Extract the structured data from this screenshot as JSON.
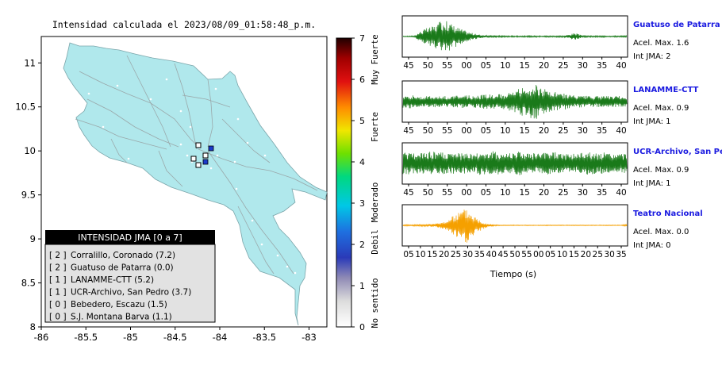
{
  "map": {
    "title": "Intensidad calculada el 2023/08/09_01:58:48_p.m.",
    "x_ticks": [
      "-86",
      "-85.5",
      "-85",
      "-84.5",
      "-84",
      "-83.5",
      "-83"
    ],
    "y_ticks": [
      "11",
      "10.5",
      "10",
      "9.5",
      "9",
      "8.5",
      "8"
    ],
    "xlim": [
      -86,
      -82.8
    ],
    "ylim": [
      8,
      11.3
    ],
    "land_color": "#b0e8ec",
    "legend": {
      "title": "INTENSIDAD JMA [0 a 7]",
      "items": [
        {
          "level": "[ 2 ]",
          "label": "Corralillo, Coronado (7.2)"
        },
        {
          "level": "[ 2 ]",
          "label": "Guatuso de Patarra (0.0)"
        },
        {
          "level": "[ 1 ]",
          "label": "LANAMME-CTT (5.2)"
        },
        {
          "level": "[ 1 ]",
          "label": "UCR-Archivo, San Pedro (3.7)"
        },
        {
          "level": "[ 0 ]",
          "label": "Bebedero, Escazu (1.5)"
        },
        {
          "level": "[ 0 ]",
          "label": "S.J. Montana Barva (1.1)"
        }
      ]
    }
  },
  "colorbar": {
    "ticks": [
      "7",
      "6",
      "5",
      "4",
      "3",
      "2",
      "1",
      "0"
    ],
    "labels": [
      "Muy Fuerte",
      "Fuerte",
      "Moderado",
      "Debil",
      "No sentido"
    ],
    "range": [
      0,
      7
    ]
  },
  "chart_data": {
    "type": "line",
    "panels": [
      {
        "name": "Guatuso de Patarra",
        "accel_text": "Acel. Max. 1.6",
        "int_text": "Int JMA: 2",
        "color": "#1a7a1a",
        "x_ticks": [
          "45",
          "50",
          "55",
          "00",
          "05",
          "10",
          "15",
          "20",
          "25",
          "30",
          "35",
          "40"
        ],
        "trace": [
          0.02,
          0.03,
          0.04,
          0.3,
          0.45,
          0.55,
          0.7,
          0.95,
          0.8,
          0.6,
          0.45,
          0.3,
          0.2,
          0.12,
          0.08,
          0.06,
          0.05,
          0.05,
          0.04,
          0.04,
          0.04,
          0.04,
          0.04,
          0.04,
          0.04,
          0.04,
          0.04,
          0.04,
          0.04,
          0.12,
          0.2,
          0.08,
          0.04,
          0.04,
          0.04,
          0.04,
          0.04,
          0.04,
          0.04,
          0.04
        ]
      },
      {
        "name": "LANAMME-CTT",
        "accel_text": "Acel. Max. 0.9",
        "int_text": "Int JMA: 1",
        "color": "#1a7a1a",
        "x_ticks": [
          "45",
          "50",
          "55",
          "00",
          "05",
          "10",
          "15",
          "20",
          "25",
          "30",
          "35",
          "40"
        ],
        "trace": [
          0.35,
          0.4,
          0.35,
          0.3,
          0.32,
          0.3,
          0.32,
          0.3,
          0.3,
          0.32,
          0.35,
          0.35,
          0.32,
          0.35,
          0.4,
          0.45,
          0.42,
          0.4,
          0.45,
          0.55,
          0.7,
          0.8,
          0.9,
          1.0,
          0.8,
          0.65,
          0.55,
          0.5,
          0.45,
          0.4,
          0.35,
          0.32,
          0.32,
          0.3,
          0.3,
          0.3,
          0.3,
          0.3,
          0.3,
          0.28
        ]
      },
      {
        "name": "UCR-Archivo, San Pedro",
        "accel_text": "Acel. Max. 0.9",
        "int_text": "Int JMA: 1",
        "color": "#1a7a1a",
        "x_ticks": [
          "45",
          "50",
          "55",
          "00",
          "05",
          "10",
          "15",
          "20",
          "25",
          "30",
          "35",
          "40"
        ],
        "trace": [
          0.6,
          0.65,
          0.6,
          0.55,
          0.6,
          0.7,
          0.65,
          0.6,
          0.55,
          0.6,
          0.55,
          0.6,
          0.55,
          0.6,
          0.65,
          0.6,
          0.7,
          0.6,
          0.55,
          0.65,
          0.7,
          0.6,
          0.55,
          0.6,
          0.55,
          0.6,
          0.65,
          0.6,
          0.55,
          0.6,
          0.55,
          0.6,
          0.65,
          0.6,
          0.55,
          0.6,
          0.55,
          0.5,
          0.55,
          0.5
        ]
      },
      {
        "name": "Teatro Nacional",
        "accel_text": "Acel. Max. 0.0",
        "int_text": "Int JMA: 0",
        "color": "#f5a000",
        "x_ticks": [
          "05",
          "10",
          "15",
          "20",
          "25",
          "30",
          "35",
          "40",
          "45",
          "50",
          "55",
          "00",
          "05",
          "10",
          "15",
          "20",
          "25",
          "30",
          "35"
        ],
        "trace": [
          0.04,
          0.04,
          0.04,
          0.05,
          0.05,
          0.08,
          0.12,
          0.2,
          0.35,
          0.6,
          0.85,
          1.0,
          0.7,
          0.4,
          0.2,
          0.08,
          0.04,
          0.02,
          0.02,
          0.02,
          0.02,
          0.02,
          0.02,
          0.02,
          0.02,
          0.02,
          0.02,
          0.02,
          0.02,
          0.02,
          0.02,
          0.02,
          0.02,
          0.02,
          0.02,
          0.02,
          0.02,
          0.02,
          0.02,
          0.06
        ]
      }
    ],
    "xlabel": "Tiempo (s)"
  }
}
